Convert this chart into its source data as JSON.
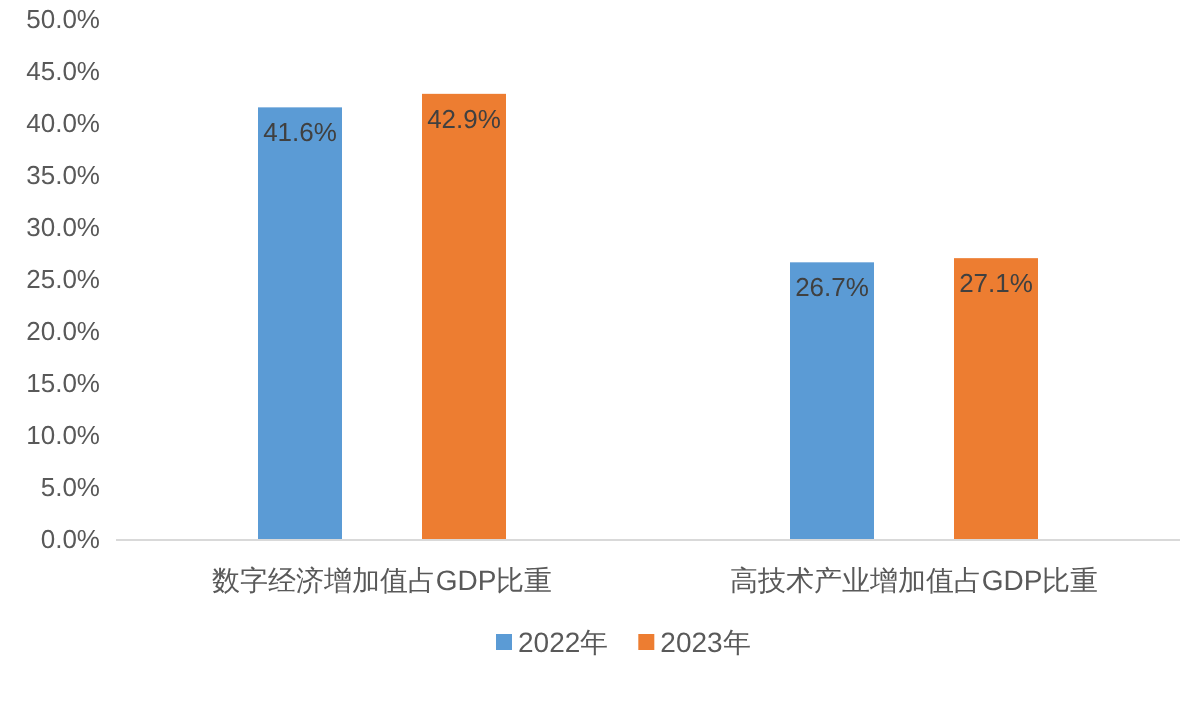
{
  "chart_data": {
    "type": "bar",
    "categories": [
      "数字经济增加值占GDP比重",
      "高技术产业增加值占GDP比重"
    ],
    "series": [
      {
        "name": "2022年",
        "color": "#5b9bd5",
        "values": [
          41.6,
          26.7
        ],
        "value_labels": [
          "41.6%",
          "26.7%"
        ]
      },
      {
        "name": "2023年",
        "color": "#ed7d31",
        "values": [
          42.9,
          27.1
        ],
        "value_labels": [
          "42.9%",
          "27.1%"
        ]
      }
    ],
    "ylim": [
      0,
      50
    ],
    "yticks": [
      {
        "value": 0,
        "label": "0.0%"
      },
      {
        "value": 5,
        "label": "5.0%"
      },
      {
        "value": 10,
        "label": "10.0%"
      },
      {
        "value": 15,
        "label": "15.0%"
      },
      {
        "value": 20,
        "label": "20.0%"
      },
      {
        "value": 25,
        "label": "25.0%"
      },
      {
        "value": 30,
        "label": "30.0%"
      },
      {
        "value": 35,
        "label": "35.0%"
      },
      {
        "value": 40,
        "label": "40.0%"
      },
      {
        "value": 45,
        "label": "45.0%"
      },
      {
        "value": 50,
        "label": "50.0%"
      }
    ],
    "grid": false,
    "legend": "bottom"
  }
}
